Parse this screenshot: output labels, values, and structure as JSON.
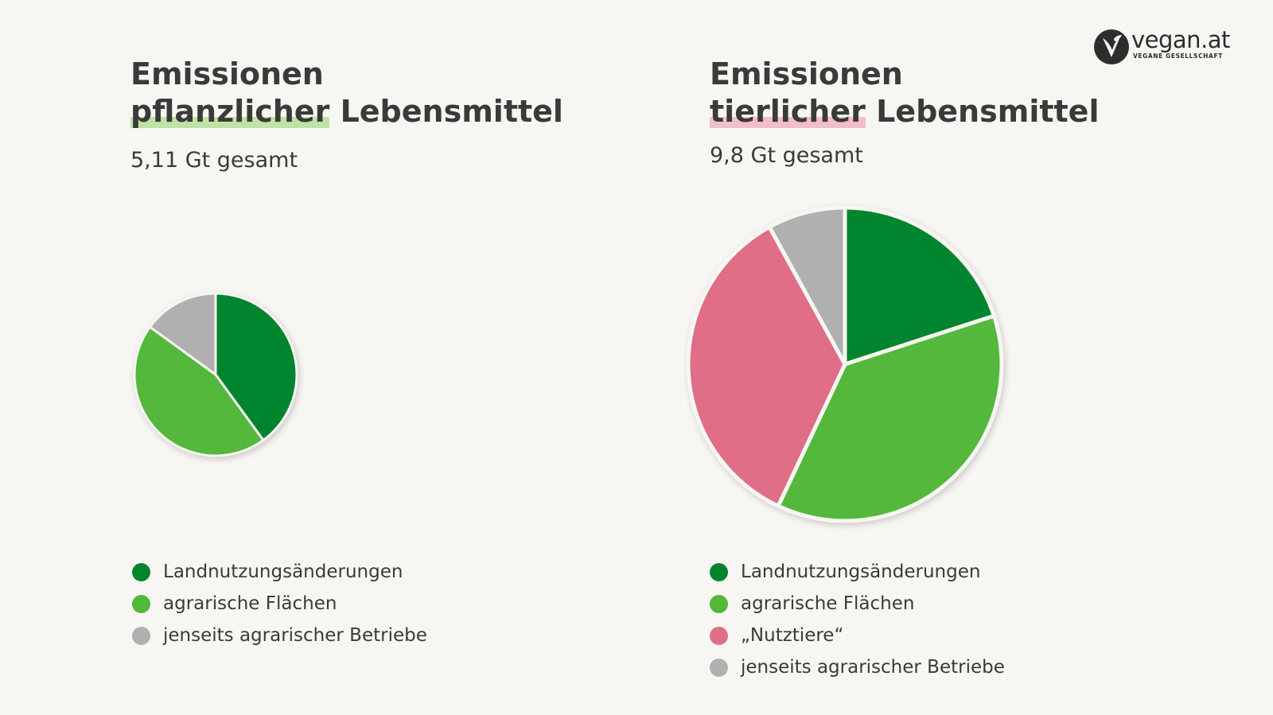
{
  "brand": {
    "logo_name": "vegan.at",
    "logo_subtitle": "VEGANE GESELLSCHAFT",
    "logo_icon": "v-leaf-icon"
  },
  "chart_data": [
    {
      "type": "pie",
      "title_line1": "Emissionen",
      "title_highlight": "pflanzlicher",
      "title_rest": "Lebensmittel",
      "highlight_color": "#bfe2a6",
      "subtitle": "5,11 Gt gesamt",
      "legend_placement": "bottom-left",
      "categories": [
        "Landnutzungsänderungen",
        "agrarische Flächen",
        "jenseits agrarischer Betriebe"
      ],
      "values": [
        40,
        45,
        15
      ],
      "colors": [
        "#00852d",
        "#52b83a",
        "#b0b0b0"
      ]
    },
    {
      "type": "pie",
      "title_line1": "Emissionen",
      "title_highlight": "tierlicher",
      "title_rest": "Lebensmittel",
      "highlight_color": "#f0bfca",
      "subtitle": "9,8 Gt gesamt",
      "legend_placement": "bottom-left",
      "categories": [
        "Landnutzungsänderungen",
        "agrarische Flächen",
        "„Nutztiere“",
        "jenseits agrarischer Betriebe"
      ],
      "values": [
        20,
        37,
        35,
        8
      ],
      "colors": [
        "#00852d",
        "#52b83a",
        "#df6e86",
        "#b0b0b0"
      ]
    }
  ]
}
